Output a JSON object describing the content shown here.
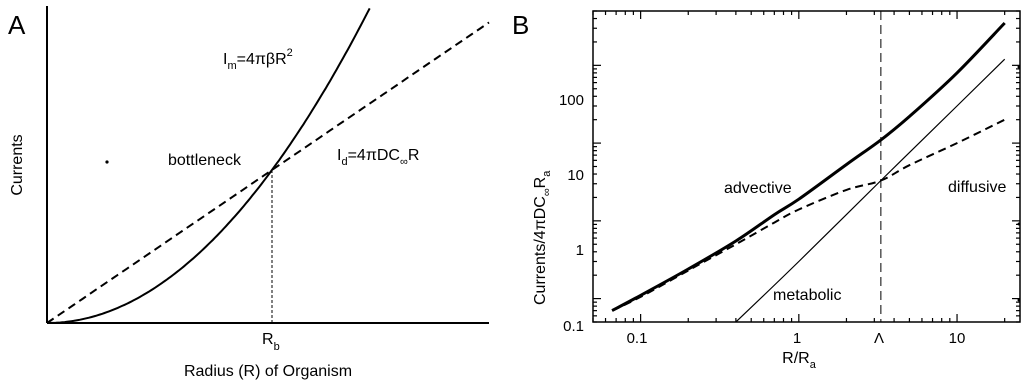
{
  "chart_data": [
    {
      "panel": "A",
      "type": "line",
      "xlabel": "Radius (R) of Organism",
      "ylabel": "Currents",
      "xticks": [
        "R_b"
      ],
      "scale": "linear",
      "grid": false,
      "series": [
        {
          "name": "I_m=4πβR²",
          "style": "solid",
          "function": "quadratic",
          "x": [
            0,
            0.25,
            0.5,
            0.75,
            1,
            1.25,
            1.45
          ],
          "y": [
            0,
            0.0625,
            0.25,
            0.5625,
            1,
            1.5625,
            2.1
          ]
        },
        {
          "name": "I_d=4πDC∞R",
          "style": "dashed",
          "function": "linear",
          "x": [
            0,
            0.5,
            1,
            1.5,
            2.0
          ],
          "y": [
            0,
            0.5,
            1,
            1.5,
            2.0
          ]
        }
      ],
      "annotations": [
        "bottleneck"
      ],
      "crossing": {
        "x": 1,
        "y": 1
      }
    },
    {
      "panel": "B",
      "type": "line",
      "xlabel": "R/R_a",
      "ylabel": "Currents/4πDC∞R_a",
      "xscale": "log",
      "yscale": "log",
      "xlim": [
        0.05,
        25
      ],
      "ylim": [
        0.05,
        500
      ],
      "xticks": [
        "0.1",
        "1",
        "Λ",
        "10"
      ],
      "yticks": [
        "0.1",
        "1",
        "10",
        "100"
      ],
      "vline": {
        "x": 3.3,
        "label": "Λ",
        "style": "dashed"
      },
      "series": [
        {
          "name": "advective",
          "style": "thick-solid",
          "x": [
            0.066,
            0.1,
            0.2,
            0.4,
            0.7,
            1.0,
            2.0,
            3.3,
            5.0,
            10,
            20
          ],
          "y": [
            0.07,
            0.11,
            0.24,
            0.55,
            1.2,
            1.9,
            5.3,
            11,
            22,
            80,
            350
          ]
        },
        {
          "name": "diffusive",
          "style": "dashed",
          "x": [
            0.066,
            0.1,
            0.2,
            0.4,
            0.7,
            1.0,
            2.0,
            3.3,
            5.0,
            10,
            20
          ],
          "y": [
            0.07,
            0.105,
            0.23,
            0.5,
            0.95,
            1.4,
            2.5,
            3.3,
            5.2,
            10,
            20
          ]
        },
        {
          "name": "metabolic",
          "style": "thin-solid",
          "x": [
            0.4,
            1.0,
            3.3,
            10,
            20
          ],
          "y": [
            0.05,
            0.3,
            3.3,
            30,
            120
          ]
        }
      ]
    }
  ],
  "labels": {
    "panel_a": "A",
    "panel_b": "B",
    "a_ylabel": "Currents",
    "a_xlabel": "Radius (R) of Organism",
    "a_bottleneck": "bottleneck",
    "a_rb_main": "R",
    "a_rb_sub": "b",
    "a_im_main": "I",
    "a_im_sub": "m",
    "a_im_rest": "=4πβR",
    "a_im_sup": "2",
    "a_id_main": "I",
    "a_id_sub": "d",
    "a_id_rest1": "=4πDC",
    "a_id_sub2": "∞",
    "a_id_rest2": "R",
    "b_ylabel_main": "Currents/4πDC",
    "b_ylabel_sub1": "∞",
    "b_ylabel_mid": "R",
    "b_ylabel_sub2": "a",
    "b_xlabel_main": "R/R",
    "b_xlabel_sub": "a",
    "b_advective": "advective",
    "b_diffusive": "diffusive",
    "b_metabolic": "metabolic",
    "b_xt_01": "0.1",
    "b_xt_1": "1",
    "b_xt_lambda": "Λ",
    "b_xt_10": "10",
    "b_yt_01": "0.1",
    "b_yt_1": "1",
    "b_yt_10": "10",
    "b_yt_100": "100"
  }
}
